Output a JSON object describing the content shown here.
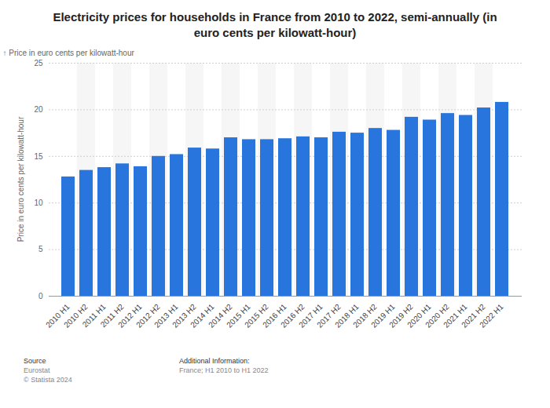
{
  "chart_data": {
    "type": "bar",
    "title": "Electricity prices for households in France from 2010 to 2022, semi-annually (in euro cents per kilowatt-hour)",
    "y_label": "Price in euro cents per kilowatt-hour",
    "categories": [
      "2010 H1",
      "2010 H2",
      "2011 H1",
      "2011 H2",
      "2012 H1",
      "2012 H2",
      "2013 H1",
      "2013 H2",
      "2014 H1",
      "2014 H2",
      "2015 H1",
      "2015 H2",
      "2016 H1",
      "2016 H2",
      "2017 H1",
      "2017 H2",
      "2018 H1",
      "2018 H2",
      "2019 H1",
      "2019 H2",
      "2020 H1",
      "2020 H2",
      "2021 H1",
      "2021 H2",
      "2022 H1"
    ],
    "values": [
      12.8,
      13.5,
      13.8,
      14.2,
      13.9,
      15.0,
      15.2,
      15.9,
      15.8,
      17.0,
      16.8,
      16.8,
      16.9,
      17.1,
      17.0,
      17.6,
      17.5,
      18.0,
      17.8,
      19.2,
      18.9,
      19.6,
      19.4,
      20.2,
      20.8
    ],
    "color": "#2876dd",
    "ylim": [
      0,
      25
    ],
    "yticks": [
      0,
      5,
      10,
      15,
      20,
      25
    ],
    "grid": true,
    "source": {
      "label": "Source",
      "text": "Eurostat",
      "copyright": "© Statista 2024"
    },
    "additional_info": {
      "label": "Additional Information:",
      "text": "France; H1 2010 to H1 2022"
    }
  }
}
